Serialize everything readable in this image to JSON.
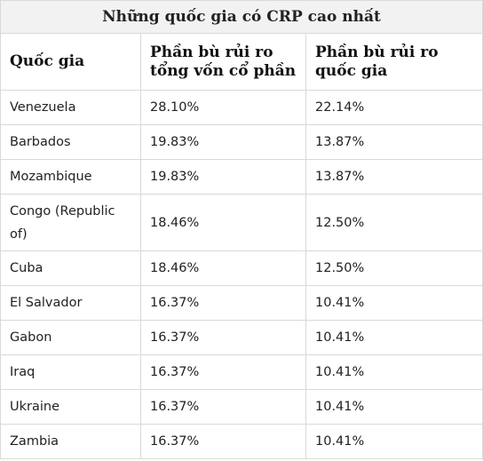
{
  "table": {
    "title": "Những quốc gia có CRP cao nhất",
    "headers": [
      "Quốc gia",
      "Phần bù rủi ro tổng vốn cổ phần",
      "Phần bù rủi ro quốc gia"
    ],
    "rows": [
      {
        "country": "Venezuela",
        "total_equity_premium": "28.10%",
        "country_premium": "22.14%"
      },
      {
        "country": "Barbados",
        "total_equity_premium": "19.83%",
        "country_premium": "13.87%"
      },
      {
        "country": "Mozambique",
        "total_equity_premium": "19.83%",
        "country_premium": "13.87%"
      },
      {
        "country": "Congo (Republic of)",
        "total_equity_premium": "18.46%",
        "country_premium": "12.50%"
      },
      {
        "country": "Cuba",
        "total_equity_premium": "18.46%",
        "country_premium": "12.50%"
      },
      {
        "country": "El Salvador",
        "total_equity_premium": "16.37%",
        "country_premium": "10.41%"
      },
      {
        "country": "Gabon",
        "total_equity_premium": "16.37%",
        "country_premium": "10.41%"
      },
      {
        "country": "Iraq",
        "total_equity_premium": "16.37%",
        "country_premium": "10.41%"
      },
      {
        "country": "Ukraine",
        "total_equity_premium": "16.37%",
        "country_premium": "10.41%"
      },
      {
        "country": "Zambia",
        "total_equity_premium": "16.37%",
        "country_premium": "10.41%"
      }
    ]
  }
}
